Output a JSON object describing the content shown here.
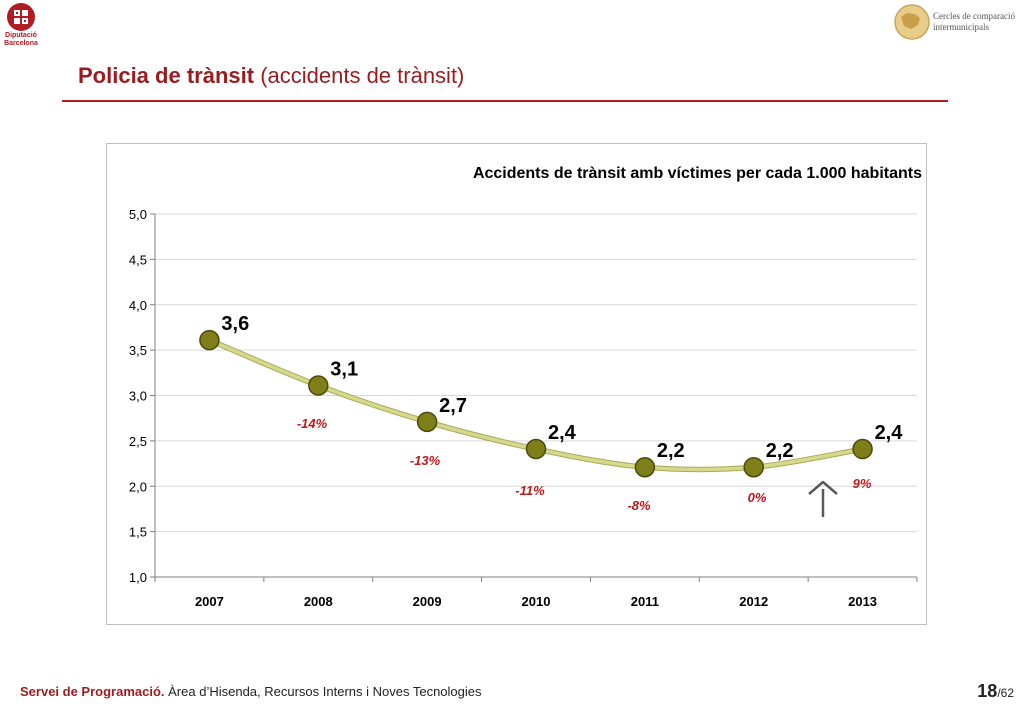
{
  "header": {
    "left_logo_lines": [
      "Diputació",
      "Barcelona"
    ],
    "right_logo_lines": [
      "Cercles de comparació",
      "intermunicipals"
    ]
  },
  "page": {
    "title_bold": "Policia de trànsit",
    "title_rest": "(accidents de trànsit)"
  },
  "chart_data": {
    "type": "line",
    "title": "Accidents de trànsit amb víctimes per cada 1.000 habitants",
    "xlabel": "",
    "ylabel": "",
    "categories": [
      "2007",
      "2008",
      "2009",
      "2010",
      "2011",
      "2012",
      "2013"
    ],
    "values": [
      3.61,
      3.11,
      2.71,
      2.41,
      2.21,
      2.21,
      2.41
    ],
    "value_labels": [
      "3,6",
      "3,1",
      "2,7",
      "2,4",
      "2,2",
      "2,2",
      "2,4"
    ],
    "change_labels": [
      "-14%",
      "-13%",
      "-11%",
      "-8%",
      "0%",
      "9%"
    ],
    "ylim": [
      1.0,
      5.0
    ],
    "yticks": [
      "1,0",
      "1,5",
      "2,0",
      "2,5",
      "3,0",
      "3,5",
      "4,0",
      "4,5",
      "5,0"
    ],
    "grid": true,
    "legend": "none",
    "annotation": "up-arrow",
    "colors": {
      "line": "#d6d88a",
      "marker_fill": "#7f7f1a",
      "marker_stroke": "#4a4a0a",
      "change_text": "#c0191c",
      "grid": "#d9d9d9",
      "arrow": "#595959"
    }
  },
  "footer": {
    "org_bold": "Servei de Programació.",
    "org_rest": "Àrea d’Hisenda, Recursos Interns i Noves Tecnologies",
    "page_number": "18",
    "page_total": "/62"
  }
}
